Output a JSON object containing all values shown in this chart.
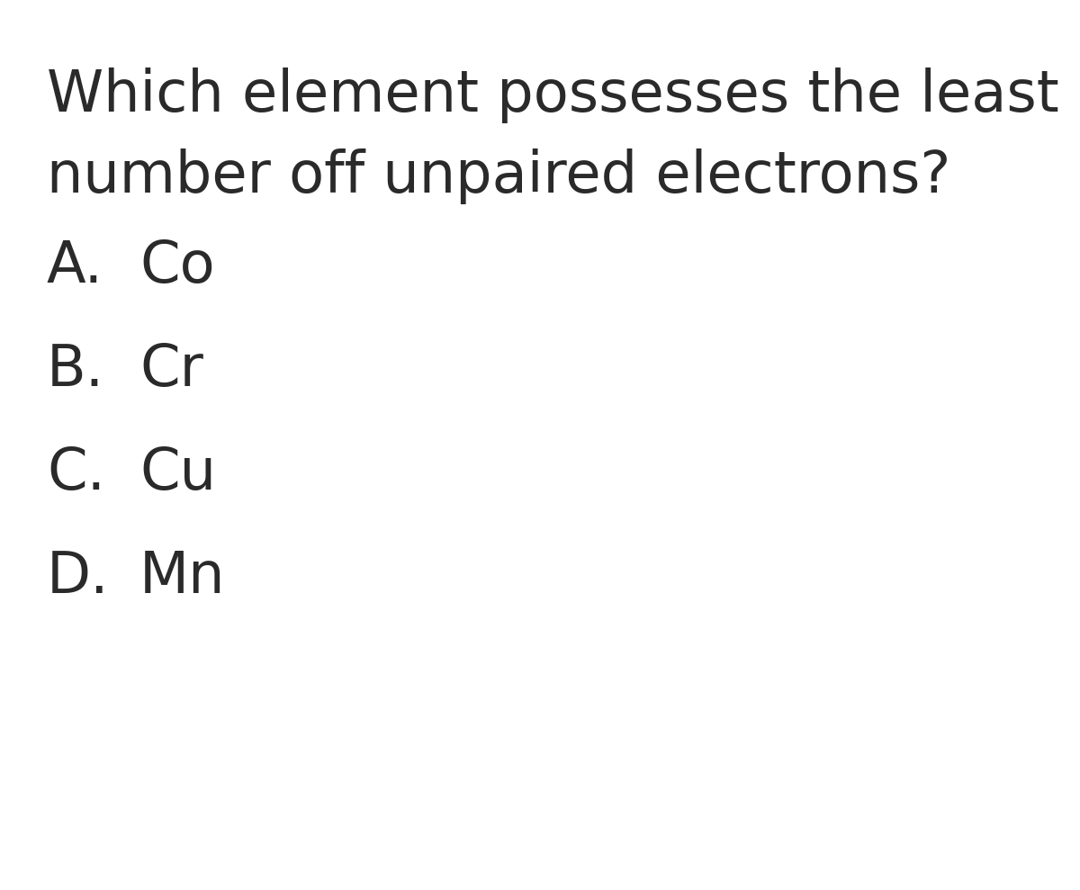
{
  "background_color": "#ffffff",
  "question_line1": "Which element possesses the least",
  "question_line2": "number off unpaired electrons?",
  "options": [
    {
      "label": "A.",
      "text": "Co"
    },
    {
      "label": "B.",
      "text": "Cr"
    },
    {
      "label": "C.",
      "text": "Cu"
    },
    {
      "label": "D.",
      "text": "Mn"
    }
  ],
  "text_color": "#2a2a2a",
  "question_fontsize": 46,
  "option_fontsize": 46,
  "fig_width": 12.0,
  "fig_height": 9.89,
  "dpi": 100
}
